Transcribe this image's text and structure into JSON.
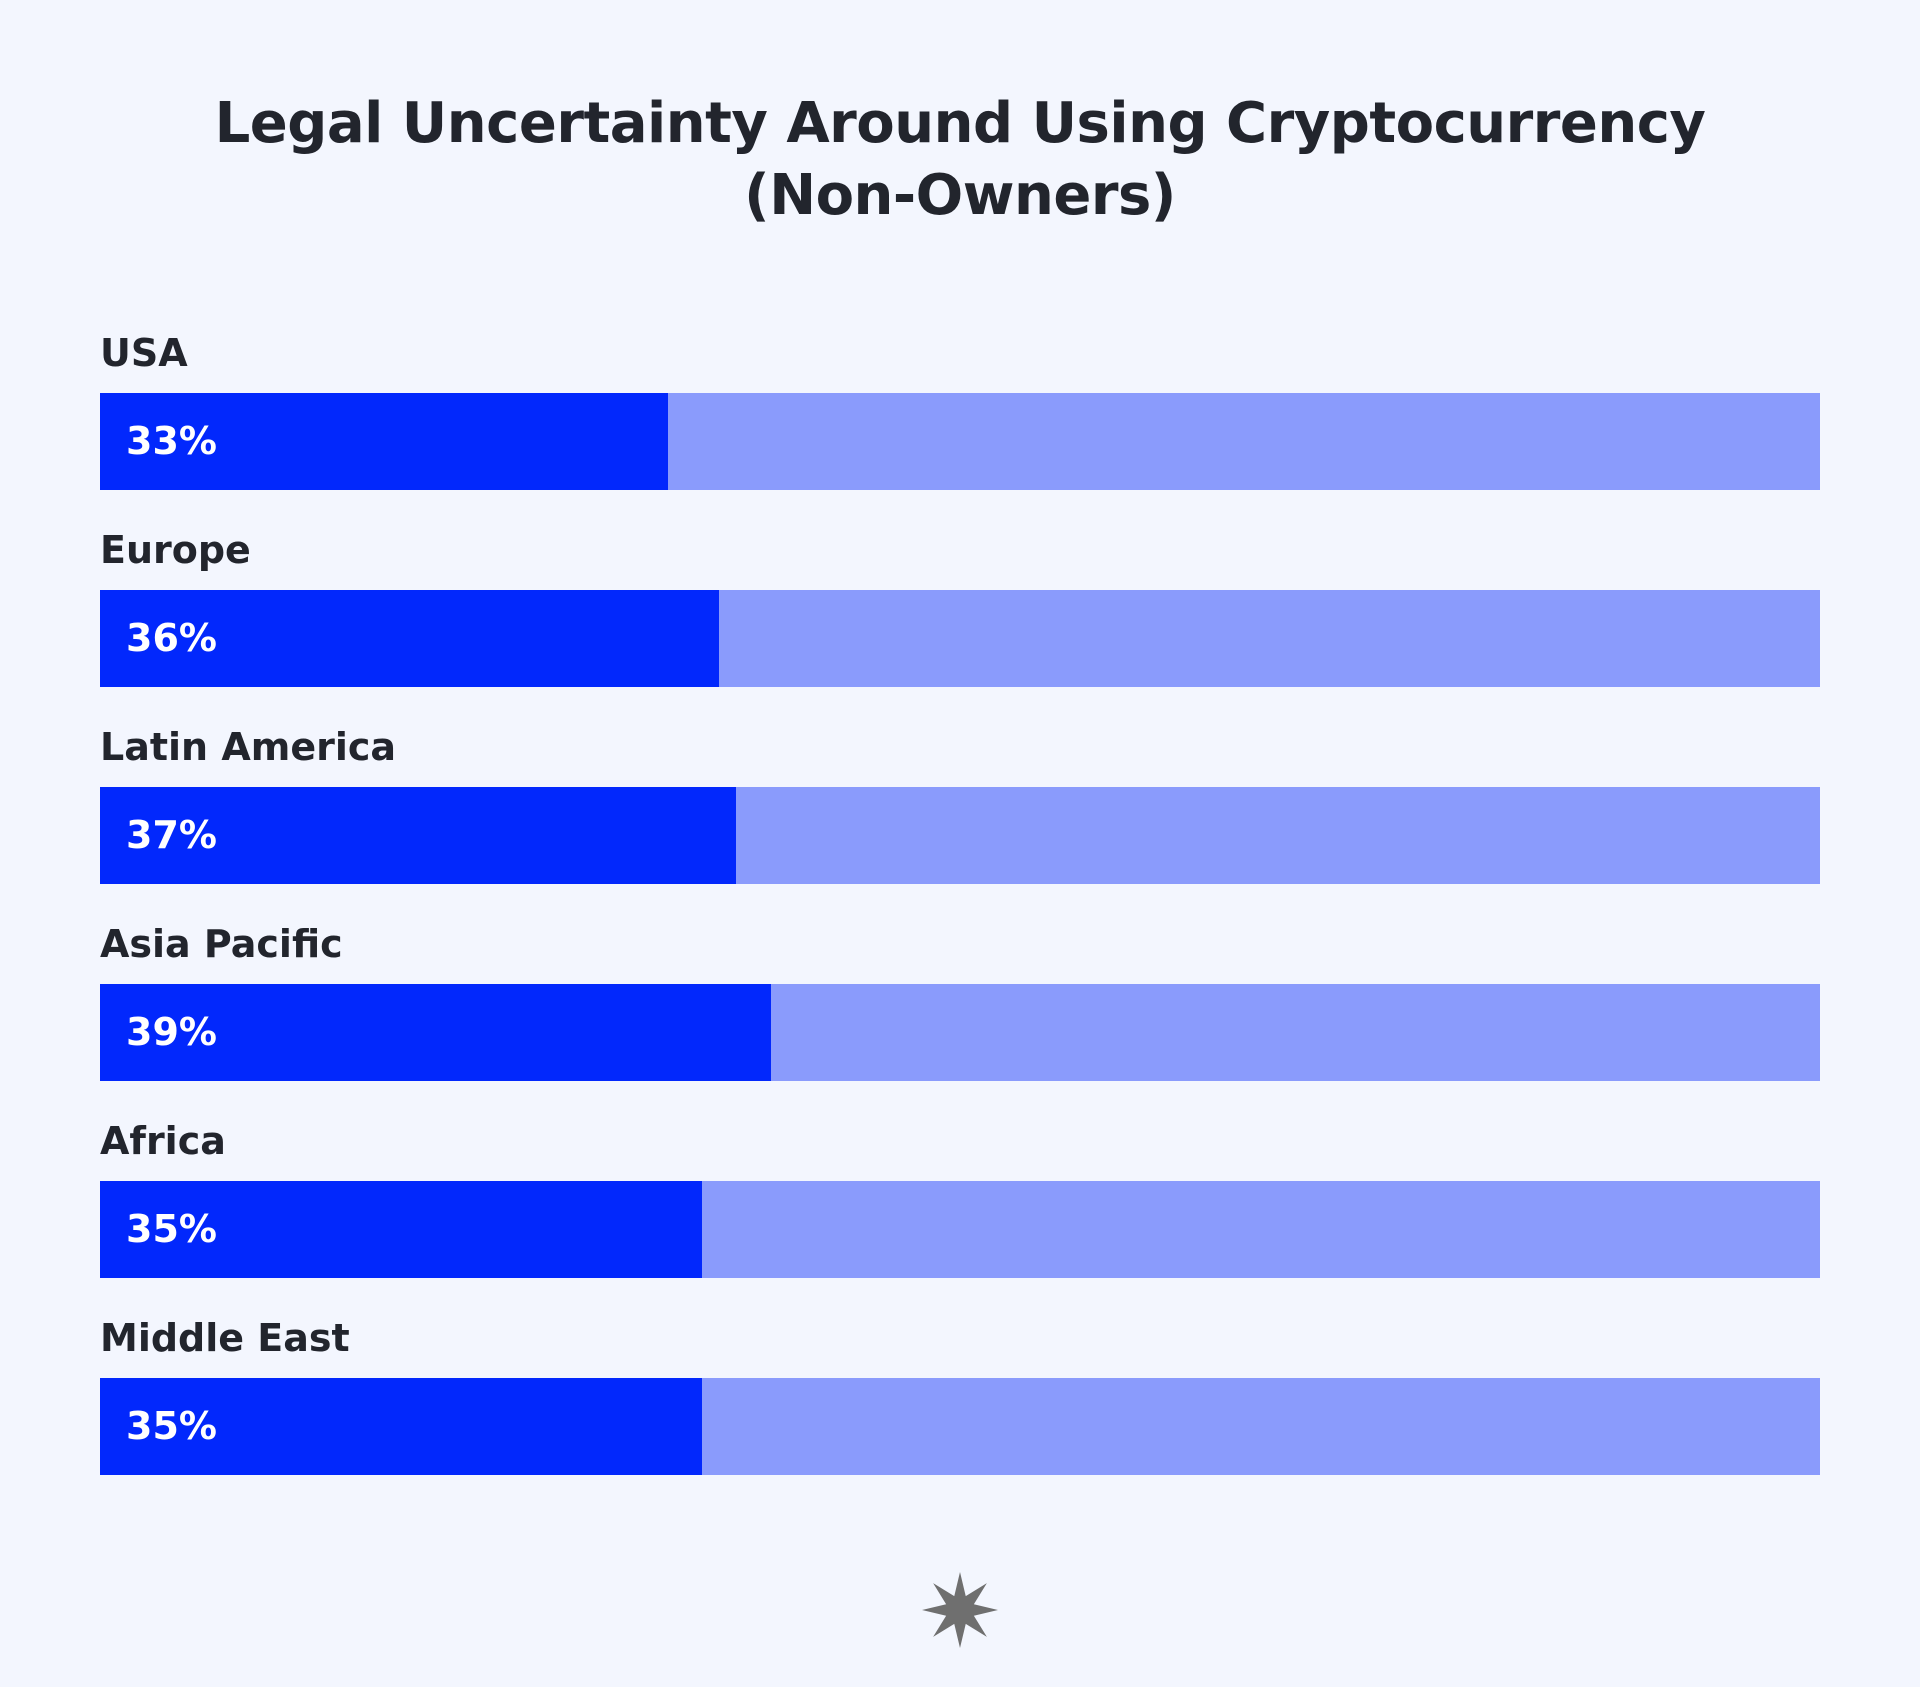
{
  "chart_data": {
    "type": "bar",
    "orientation": "horizontal",
    "title": "Legal Uncertainty Around Using Cryptocurrency (Non-Owners)",
    "title_lines": [
      "Legal Uncertainty Around Using Cryptocurrency",
      "(Non-Owners)"
    ],
    "categories": [
      "USA",
      "Europe",
      "Latin America",
      "Asia Pacific",
      "Africa",
      "Middle East"
    ],
    "values": [
      33,
      36,
      37,
      39,
      35,
      35
    ],
    "value_labels": [
      "33%",
      "36%",
      "37%",
      "39%",
      "35%",
      "35%"
    ],
    "xlim": [
      0,
      100
    ],
    "unit": "%",
    "grid": false,
    "legend": "none"
  },
  "colors": {
    "background": "#f3f6fe",
    "bar_fill": "#0228fc",
    "bar_track": "#8a9bfc",
    "text": "#22252d",
    "value_text": "#ffffff",
    "logo": "#6f6f6f"
  },
  "footer": {
    "logo_icon": "starburst-logo-icon"
  }
}
